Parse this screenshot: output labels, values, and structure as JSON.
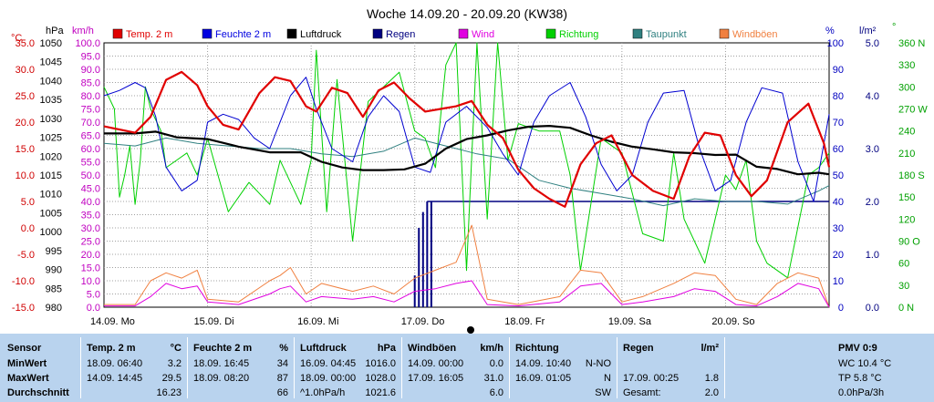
{
  "chart_data": {
    "type": "line",
    "title": "Woche 14.09.20 - 20.09.20 (KW38)",
    "legend": {
      "placement": "top",
      "entries": [
        {
          "label": "Temp. 2 m",
          "color": "#e00000"
        },
        {
          "label": "Feuchte 2 m",
          "color": "#0000e0"
        },
        {
          "label": "Luftdruck",
          "color": "#000000"
        },
        {
          "label": "Regen",
          "color": "#000080"
        },
        {
          "label": "Wind",
          "color": "#e000e0"
        },
        {
          "label": "Richtung",
          "color": "#00d000"
        },
        {
          "label": "Taupunkt",
          "color": "#308080"
        },
        {
          "label": "Windböen",
          "color": "#f08040"
        }
      ]
    },
    "axes": {
      "temp": {
        "unit": "°C",
        "color": "#d00000",
        "ticks": [
          "35.0",
          "30.0",
          "25.0",
          "20.0",
          "15.0",
          "10.0",
          "5.0",
          "0.0",
          "-5.0",
          "-10.0",
          "-15.0"
        ],
        "ylim": [
          -15,
          35
        ]
      },
      "pressure": {
        "unit": "hPa",
        "color": "#000000",
        "ticks": [
          "1050",
          "1045",
          "1040",
          "1035",
          "1030",
          "1025",
          "1020",
          "1015",
          "1010",
          "1005",
          "1000",
          "995",
          "990",
          "985",
          "980"
        ],
        "ylim": [
          980,
          1050
        ]
      },
      "wind": {
        "unit": "km/h",
        "color": "#c000c0",
        "ticks": [
          "100.0",
          "95.0",
          "90.0",
          "85.0",
          "80.0",
          "75.0",
          "70.0",
          "65.0",
          "60.0",
          "55.0",
          "50.0",
          "45.0",
          "40.0",
          "35.0",
          "30.0",
          "25.0",
          "20.0",
          "15.0",
          "10.0",
          "5.0",
          "0.0"
        ],
        "ylim": [
          0,
          100
        ]
      },
      "humidity": {
        "unit": "%",
        "color": "#0000c0",
        "ticks": [
          "100",
          "90",
          "80",
          "70",
          "60",
          "50",
          "40",
          "30",
          "20",
          "10",
          "0"
        ],
        "ylim": [
          0,
          100
        ]
      },
      "rain": {
        "unit": "l/m²",
        "color": "#000080",
        "ticks": [
          "5.0",
          "4.0",
          "3.0",
          "2.0",
          "1.0",
          "0.0"
        ],
        "ylim": [
          0,
          5
        ]
      },
      "direction": {
        "unit": "°",
        "color": "#00a000",
        "ticks": [
          "360 N",
          "330",
          "300",
          "270 W",
          "240",
          "210",
          "180 S",
          "150",
          "120",
          "90 O",
          "60",
          "30",
          "0 N"
        ],
        "ylim": [
          0,
          360
        ]
      }
    },
    "x": {
      "ticks": [
        "14.09.  Mo",
        "15.09.  Di",
        "16.09.  Mi",
        "17.09.  Do",
        "18.09.  Fr",
        "19.09.  Sa",
        "20.09.  So"
      ],
      "range_days": [
        0,
        7
      ]
    },
    "grid": true,
    "series": [
      {
        "name": "Temp. 2 m",
        "axis": "temp",
        "t": [
          0,
          0.15,
          0.3,
          0.45,
          0.6,
          0.75,
          0.9,
          1.0,
          1.15,
          1.3,
          1.5,
          1.65,
          1.8,
          1.95,
          2.05,
          2.2,
          2.35,
          2.5,
          2.65,
          2.8,
          2.95,
          3.1,
          3.25,
          3.4,
          3.55,
          3.7,
          3.85,
          4.0,
          4.15,
          4.3,
          4.45,
          4.6,
          4.75,
          4.9,
          5.1,
          5.3,
          5.5,
          5.65,
          5.8,
          5.95,
          6.1,
          6.25,
          6.4,
          6.6,
          6.8,
          6.95,
          7.0
        ],
        "values": [
          19.2,
          18.6,
          18.0,
          21.0,
          28.0,
          29.5,
          27.0,
          23.0,
          19.5,
          18.6,
          25.5,
          28.5,
          27.8,
          23.0,
          22.0,
          26.5,
          25.5,
          21.0,
          26.0,
          27.5,
          24.5,
          22.0,
          22.5,
          23.0,
          24.0,
          19.5,
          17.0,
          11.0,
          7.5,
          5.5,
          4.0,
          12.0,
          16.0,
          17.5,
          10.0,
          7.0,
          5.5,
          13.5,
          18.0,
          17.5,
          10.0,
          6.0,
          9.0,
          20.0,
          23.5,
          16.0,
          11.5
        ]
      },
      {
        "name": "Feuchte 2 m",
        "axis": "humidity",
        "t": [
          0,
          0.15,
          0.3,
          0.4,
          0.5,
          0.6,
          0.75,
          0.9,
          1.0,
          1.15,
          1.3,
          1.45,
          1.6,
          1.8,
          1.95,
          2.05,
          2.2,
          2.4,
          2.55,
          2.7,
          2.85,
          3.0,
          3.15,
          3.3,
          3.5,
          3.7,
          3.85,
          4.0,
          4.15,
          4.3,
          4.5,
          4.65,
          4.8,
          4.95,
          5.1,
          5.25,
          5.4,
          5.6,
          5.75,
          5.9,
          6.05,
          6.2,
          6.35,
          6.55,
          6.7,
          6.85,
          7.0
        ],
        "values": [
          80,
          82,
          85,
          83,
          72,
          53,
          44,
          48,
          70,
          73,
          71,
          64,
          60,
          80,
          87,
          75,
          60,
          55,
          72,
          80,
          74,
          53,
          51,
          70,
          76,
          68,
          58,
          50,
          70,
          80,
          85,
          72,
          54,
          44,
          50,
          70,
          81,
          82,
          60,
          44,
          48,
          70,
          83,
          81,
          55,
          40,
          73
        ]
      },
      {
        "name": "Luftdruck",
        "axis": "pressure",
        "t": [
          0,
          0.3,
          0.5,
          0.7,
          1.0,
          1.3,
          1.6,
          1.9,
          2.1,
          2.3,
          2.5,
          2.7,
          2.9,
          3.1,
          3.3,
          3.5,
          3.7,
          3.9,
          4.1,
          4.3,
          4.5,
          4.7,
          4.9,
          5.1,
          5.3,
          5.5,
          5.7,
          5.9,
          6.1,
          6.3,
          6.5,
          6.7,
          6.9,
          7.0
        ],
        "values": [
          1026,
          1026,
          1026.5,
          1025,
          1024.5,
          1022.5,
          1021,
          1021,
          1018.5,
          1017,
          1016.3,
          1016.3,
          1016.5,
          1018,
          1022,
          1024.5,
          1025.5,
          1026.8,
          1027.8,
          1028,
          1027.5,
          1025.5,
          1023.8,
          1022.5,
          1021.8,
          1021,
          1020.8,
          1020.3,
          1020.4,
          1017.2,
          1016.6,
          1015.2,
          1015.6,
          1015.2
        ]
      },
      {
        "name": "Taupunkt",
        "axis": "temp",
        "t": [
          0,
          0.3,
          0.6,
          0.9,
          1.2,
          1.5,
          1.8,
          2.1,
          2.4,
          2.7,
          3.0,
          3.3,
          3.6,
          3.9,
          4.2,
          4.5,
          4.8,
          5.1,
          5.4,
          5.7,
          6.0,
          6.3,
          6.6,
          6.9,
          7.0
        ],
        "values": [
          16,
          15.5,
          17,
          16,
          15.5,
          15,
          15,
          14,
          13.5,
          14.5,
          17,
          15.5,
          14,
          13,
          9,
          7.5,
          6.5,
          5.5,
          4.2,
          5.5,
          5,
          5,
          4.5,
          7,
          8
        ]
      },
      {
        "name": "Wind",
        "axis": "wind",
        "t": [
          0,
          0.3,
          0.45,
          0.6,
          0.75,
          0.9,
          1.0,
          1.3,
          1.6,
          1.7,
          1.8,
          1.95,
          2.1,
          2.4,
          2.6,
          2.8,
          3.0,
          3.2,
          3.4,
          3.55,
          3.7,
          4.0,
          4.4,
          4.6,
          4.8,
          5.0,
          5.2,
          5.5,
          5.7,
          5.9,
          6.1,
          6.3,
          6.5,
          6.7,
          6.9,
          7.0
        ],
        "values": [
          0.5,
          0.5,
          4,
          9,
          7,
          8,
          2,
          1,
          5,
          7,
          8,
          2,
          4,
          3,
          4,
          2,
          6,
          7,
          9,
          10,
          1,
          0.5,
          2,
          8,
          9,
          1,
          2,
          4,
          7,
          6,
          1,
          0.5,
          4,
          9,
          7,
          0
        ]
      },
      {
        "name": "Windböen",
        "axis": "wind",
        "t": [
          0,
          0.3,
          0.45,
          0.6,
          0.75,
          0.9,
          1.0,
          1.3,
          1.6,
          1.7,
          1.8,
          1.95,
          2.1,
          2.4,
          2.6,
          2.8,
          3.0,
          3.2,
          3.4,
          3.55,
          3.7,
          4.0,
          4.4,
          4.6,
          4.8,
          5.0,
          5.2,
          5.5,
          5.7,
          5.9,
          6.1,
          6.3,
          6.5,
          6.7,
          6.9,
          7.0
        ],
        "values": [
          1,
          1,
          10,
          13,
          11,
          14,
          3,
          2,
          10,
          12,
          15,
          5,
          9,
          6,
          8,
          5,
          11,
          14,
          17,
          31,
          3,
          1,
          4,
          14,
          13,
          2,
          4,
          9,
          13,
          12,
          3,
          1,
          9,
          13,
          11,
          0
        ]
      },
      {
        "name": "Richtung",
        "axis": "direction",
        "t": [
          0,
          0.1,
          0.15,
          0.2,
          0.25,
          0.3,
          0.35,
          0.4,
          0.45,
          0.55,
          0.6,
          0.7,
          0.8,
          0.9,
          1.0,
          1.2,
          1.4,
          1.6,
          1.7,
          1.8,
          1.9,
          2.0,
          2.05,
          2.15,
          2.25,
          2.4,
          2.55,
          2.7,
          2.85,
          3.0,
          3.1,
          3.2,
          3.3,
          3.4,
          3.5,
          3.6,
          3.7,
          3.8,
          3.9,
          4.0,
          4.2,
          4.4,
          4.5,
          4.6,
          4.8,
          5.0,
          5.2,
          5.4,
          5.5,
          5.6,
          5.8,
          6.0,
          6.1,
          6.2,
          6.3,
          6.4,
          6.6,
          6.8,
          6.9,
          7.0
        ],
        "values": [
          300,
          270,
          150,
          180,
          220,
          140,
          200,
          300,
          270,
          240,
          190,
          200,
          210,
          180,
          230,
          130,
          170,
          140,
          200,
          170,
          140,
          200,
          350,
          130,
          310,
          90,
          280,
          300,
          320,
          240,
          230,
          190,
          330,
          360,
          50,
          360,
          120,
          360,
          200,
          250,
          240,
          240,
          180,
          50,
          230,
          210,
          100,
          90,
          210,
          120,
          60,
          180,
          160,
          200,
          90,
          60,
          40,
          180,
          190,
          210
        ]
      },
      {
        "name": "Regen",
        "axis": "rain",
        "t": [
          3.0,
          3.04,
          3.08,
          3.12,
          3.16
        ],
        "values": [
          0.6,
          1.5,
          1.8,
          2.0,
          2.0
        ]
      }
    ],
    "rain_line": {
      "level": 2.0,
      "from_t": 3.12,
      "to_t": 7.0
    }
  },
  "stats": {
    "headers": {
      "sensor": "Sensor",
      "temp": "Temp. 2 m",
      "temp_unit": "°C",
      "hum": "Feuchte  2 m",
      "hum_unit": "%",
      "press": "Luftdruck",
      "press_unit": "hPa",
      "gust": "Windböen",
      "gust_unit": "km/h",
      "dir": "Richtung",
      "rain": "Regen",
      "rain_unit": "l/m²",
      "pmv": "PMV 0:9"
    },
    "rows": {
      "min": "MinWert",
      "max": "MaxWert",
      "avg": "Durchschnitt"
    },
    "temp": {
      "min_time": "18.09.  06:40",
      "min_val": "3.2",
      "max_time": "14.09.  14:45",
      "max_val": "29.5",
      "avg": "16.23"
    },
    "hum": {
      "min_time": "18.09.  16:45",
      "min_val": "34",
      "max_time": "18.09.  08:20",
      "max_val": "87",
      "avg": "66"
    },
    "press": {
      "min_time": "16.09.  04:45",
      "min_val": "1016.0",
      "max_time": "18.09.  00:00",
      "max_val": "1028.0",
      "trend": "^1.0hPa/h",
      "avg": "1021.6"
    },
    "gust": {
      "min_time": "14.09.  00:00",
      "min_val": "0.0",
      "max_time": "17.09.  16:05",
      "max_val": "31.0",
      "avg": "6.0"
    },
    "dir": {
      "min_time": "14.09.  10:40",
      "min_val": "N-NO",
      "max_time": "16.09.  01:05",
      "max_val": "N",
      "avg": "SW"
    },
    "rain": {
      "max_time": "17.09.  00:25",
      "max_val": "1.8",
      "total_label": "Gesamt:",
      "total_val": "2.0"
    },
    "pmv": {
      "wc": "WC 10.4 °C",
      "tp": "TP 5.8 °C",
      "trend": "0.0hPa/3h"
    }
  }
}
